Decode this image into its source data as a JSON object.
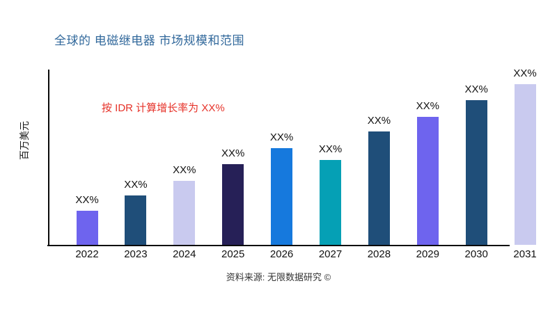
{
  "title": "全球的 电磁继电器 市场规模和范围",
  "annotation": "按 IDR 计算增长率为 XX%",
  "source": "资料来源: 无限数据研究 ©",
  "colors": {
    "title": "#31689b",
    "annotation": "#e63229",
    "axis": "#0a0a0a"
  },
  "chart_data": {
    "type": "bar",
    "title": "全球的 电磁继电器 市场规模和范围",
    "xlabel": "",
    "ylabel": "百万美元",
    "categories": [
      "2022",
      "2023",
      "2024",
      "2025",
      "2026",
      "2027",
      "2028",
      "2029",
      "2030",
      "2031"
    ],
    "values": [
      49,
      71,
      92,
      116,
      139,
      122,
      163,
      184,
      208,
      231
    ],
    "values_note": "no numeric y-axis shown; values are relative bar heights (px)",
    "bar_labels": [
      "XX%",
      "XX%",
      "XX%",
      "XX%",
      "XX%",
      "XX%",
      "XX%",
      "XX%",
      "XX%",
      "XX%"
    ],
    "bar_colors": [
      "#6e64ee",
      "#1f4e79",
      "#c9caef",
      "#262057",
      "#1679dd",
      "#05a0b5",
      "#1f4e79",
      "#6e64ee",
      "#1f4e79",
      "#c9caef"
    ],
    "grid": false,
    "legend": false,
    "annotation": "按 IDR 计算增长率为 XX%"
  }
}
